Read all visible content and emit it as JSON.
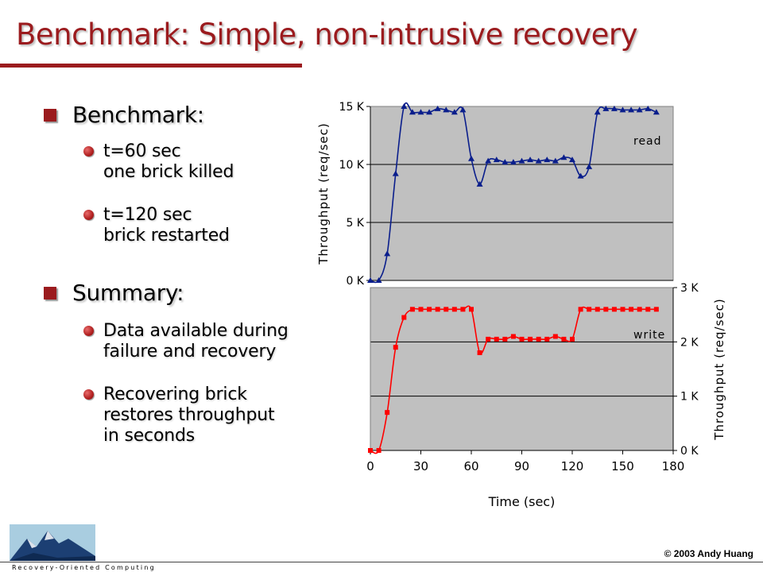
{
  "slide": {
    "title": "Benchmark: Simple, non-intrusive recovery",
    "sections": [
      {
        "label": "Benchmark:",
        "items": [
          [
            "t=60 sec",
            "one brick killed"
          ],
          [
            "t=120 sec",
            "brick restarted"
          ]
        ]
      },
      {
        "label": "Summary:",
        "items": [
          [
            "Data available during",
            "failure and recovery"
          ],
          [
            "Recovering brick",
            "restores throughput",
            "in seconds"
          ]
        ]
      }
    ],
    "copyright": "© 2003 Andy Huang",
    "logo_text": "Recovery-Oriented Computing"
  },
  "chart_data": [
    {
      "type": "line",
      "series": [
        {
          "name": "read",
          "color": "#0a1e8c",
          "marker": "triangle",
          "x": [
            0,
            5,
            10,
            15,
            20,
            25,
            30,
            35,
            40,
            45,
            50,
            55,
            60,
            65,
            70,
            75,
            80,
            85,
            90,
            95,
            100,
            105,
            110,
            115,
            120,
            125,
            130,
            135,
            140,
            145,
            150,
            155,
            160,
            165,
            170
          ],
          "values": [
            0,
            0,
            2300,
            9200,
            15000,
            14500,
            14500,
            14500,
            14800,
            14700,
            14500,
            14700,
            10500,
            8300,
            10300,
            10400,
            10200,
            10200,
            10300,
            10400,
            10300,
            10400,
            10300,
            10600,
            10400,
            9000,
            9800,
            14500,
            14800,
            14800,
            14700,
            14700,
            14700,
            14800,
            14500
          ]
        }
      ],
      "xlim": [
        0,
        180
      ],
      "ylim": [
        0,
        15000
      ],
      "y_ticks": [
        "0 K",
        "5 K",
        "10 K",
        "15 K"
      ],
      "ylabel": "Throughput (req/sec)",
      "legend_position": "top-right",
      "grid": true
    },
    {
      "type": "line",
      "series": [
        {
          "name": "write",
          "color": "#ff0000",
          "marker": "square",
          "x": [
            0,
            5,
            10,
            15,
            20,
            25,
            30,
            35,
            40,
            45,
            50,
            55,
            60,
            65,
            70,
            75,
            80,
            85,
            90,
            95,
            100,
            105,
            110,
            115,
            120,
            125,
            130,
            135,
            140,
            145,
            150,
            155,
            160,
            165,
            170
          ],
          "values": [
            0,
            0,
            700,
            1900,
            2450,
            2600,
            2600,
            2600,
            2600,
            2600,
            2600,
            2600,
            2600,
            1800,
            2050,
            2050,
            2050,
            2100,
            2050,
            2050,
            2050,
            2050,
            2100,
            2050,
            2050,
            2600,
            2600,
            2600,
            2600,
            2600,
            2600,
            2600,
            2600,
            2600,
            2600
          ]
        }
      ],
      "xlim": [
        0,
        180
      ],
      "ylim": [
        0,
        3000
      ],
      "x_ticks": [
        "0",
        "30",
        "60",
        "90",
        "120",
        "150",
        "180"
      ],
      "y_ticks": [
        "0 K",
        "1 K",
        "2 K",
        "3 K"
      ],
      "xlabel": "Time (sec)",
      "ylabel": "Throughput (req/sec)",
      "legend_position": "top-right",
      "grid": true
    }
  ]
}
